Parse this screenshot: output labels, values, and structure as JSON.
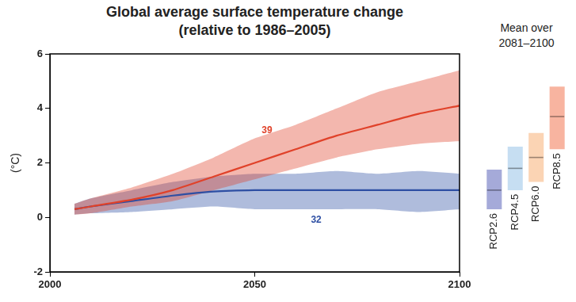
{
  "chart_data": [
    {
      "type": "line",
      "title": "Global average surface temperature change",
      "subtitle": "(relative to 1986–2005)",
      "y_label": "(°C)",
      "x": [
        2006,
        2010,
        2020,
        2030,
        2040,
        2050,
        2060,
        2070,
        2080,
        2090,
        2100
      ],
      "series": [
        {
          "name": "RCP8.5",
          "color": "#e0422a",
          "values": [
            0.3,
            0.4,
            0.65,
            1.0,
            1.5,
            2.0,
            2.5,
            3.0,
            3.4,
            3.8,
            4.1
          ],
          "lower": [
            0.1,
            0.15,
            0.4,
            0.6,
            1.0,
            1.4,
            1.8,
            2.2,
            2.5,
            2.7,
            2.8
          ],
          "upper": [
            0.5,
            0.7,
            1.1,
            1.6,
            2.2,
            2.9,
            3.4,
            4.0,
            4.6,
            5.0,
            5.4
          ]
        },
        {
          "name": "RCP2.6",
          "color": "#2e4fa3",
          "values": [
            0.3,
            0.4,
            0.6,
            0.8,
            0.95,
            1.0,
            1.0,
            1.0,
            1.0,
            1.0,
            1.0
          ],
          "lower": [
            0.1,
            0.15,
            0.2,
            0.3,
            0.4,
            0.3,
            0.3,
            0.3,
            0.3,
            0.2,
            0.3
          ],
          "upper": [
            0.5,
            0.7,
            1.0,
            1.3,
            1.5,
            1.6,
            1.6,
            1.7,
            1.6,
            1.7,
            1.6
          ]
        }
      ],
      "annotations": [
        {
          "text": "39",
          "x": 2053,
          "y": 3.2,
          "color": "#e0422a"
        },
        {
          "text": "32",
          "x": 2065,
          "y": -0.1,
          "color": "#2e4fa3"
        }
      ],
      "xlim": [
        2000,
        2100
      ],
      "xticks": [
        2000,
        2050,
        2100
      ],
      "ylim": [
        -2,
        6
      ],
      "yticks": [
        -2,
        0,
        2,
        4,
        6
      ],
      "grid": false
    },
    {
      "type": "bar",
      "title": "Mean over 2081–2100",
      "categories": [
        "RCP2.6",
        "RCP4.5",
        "RCP6.0",
        "RCP8.5"
      ],
      "low": [
        0.3,
        1.0,
        1.3,
        2.5
      ],
      "high": [
        1.75,
        2.6,
        3.1,
        4.8
      ],
      "mean": [
        1.0,
        1.8,
        2.2,
        3.7
      ],
      "colors": [
        "#a5aad9",
        "#c6def2",
        "#fbd4b4",
        "#f8b4a0"
      ],
      "ylim": [
        -2,
        6
      ],
      "yticks": [
        -2,
        0,
        2,
        4,
        6
      ],
      "tick_labels": false,
      "grid": false
    }
  ]
}
